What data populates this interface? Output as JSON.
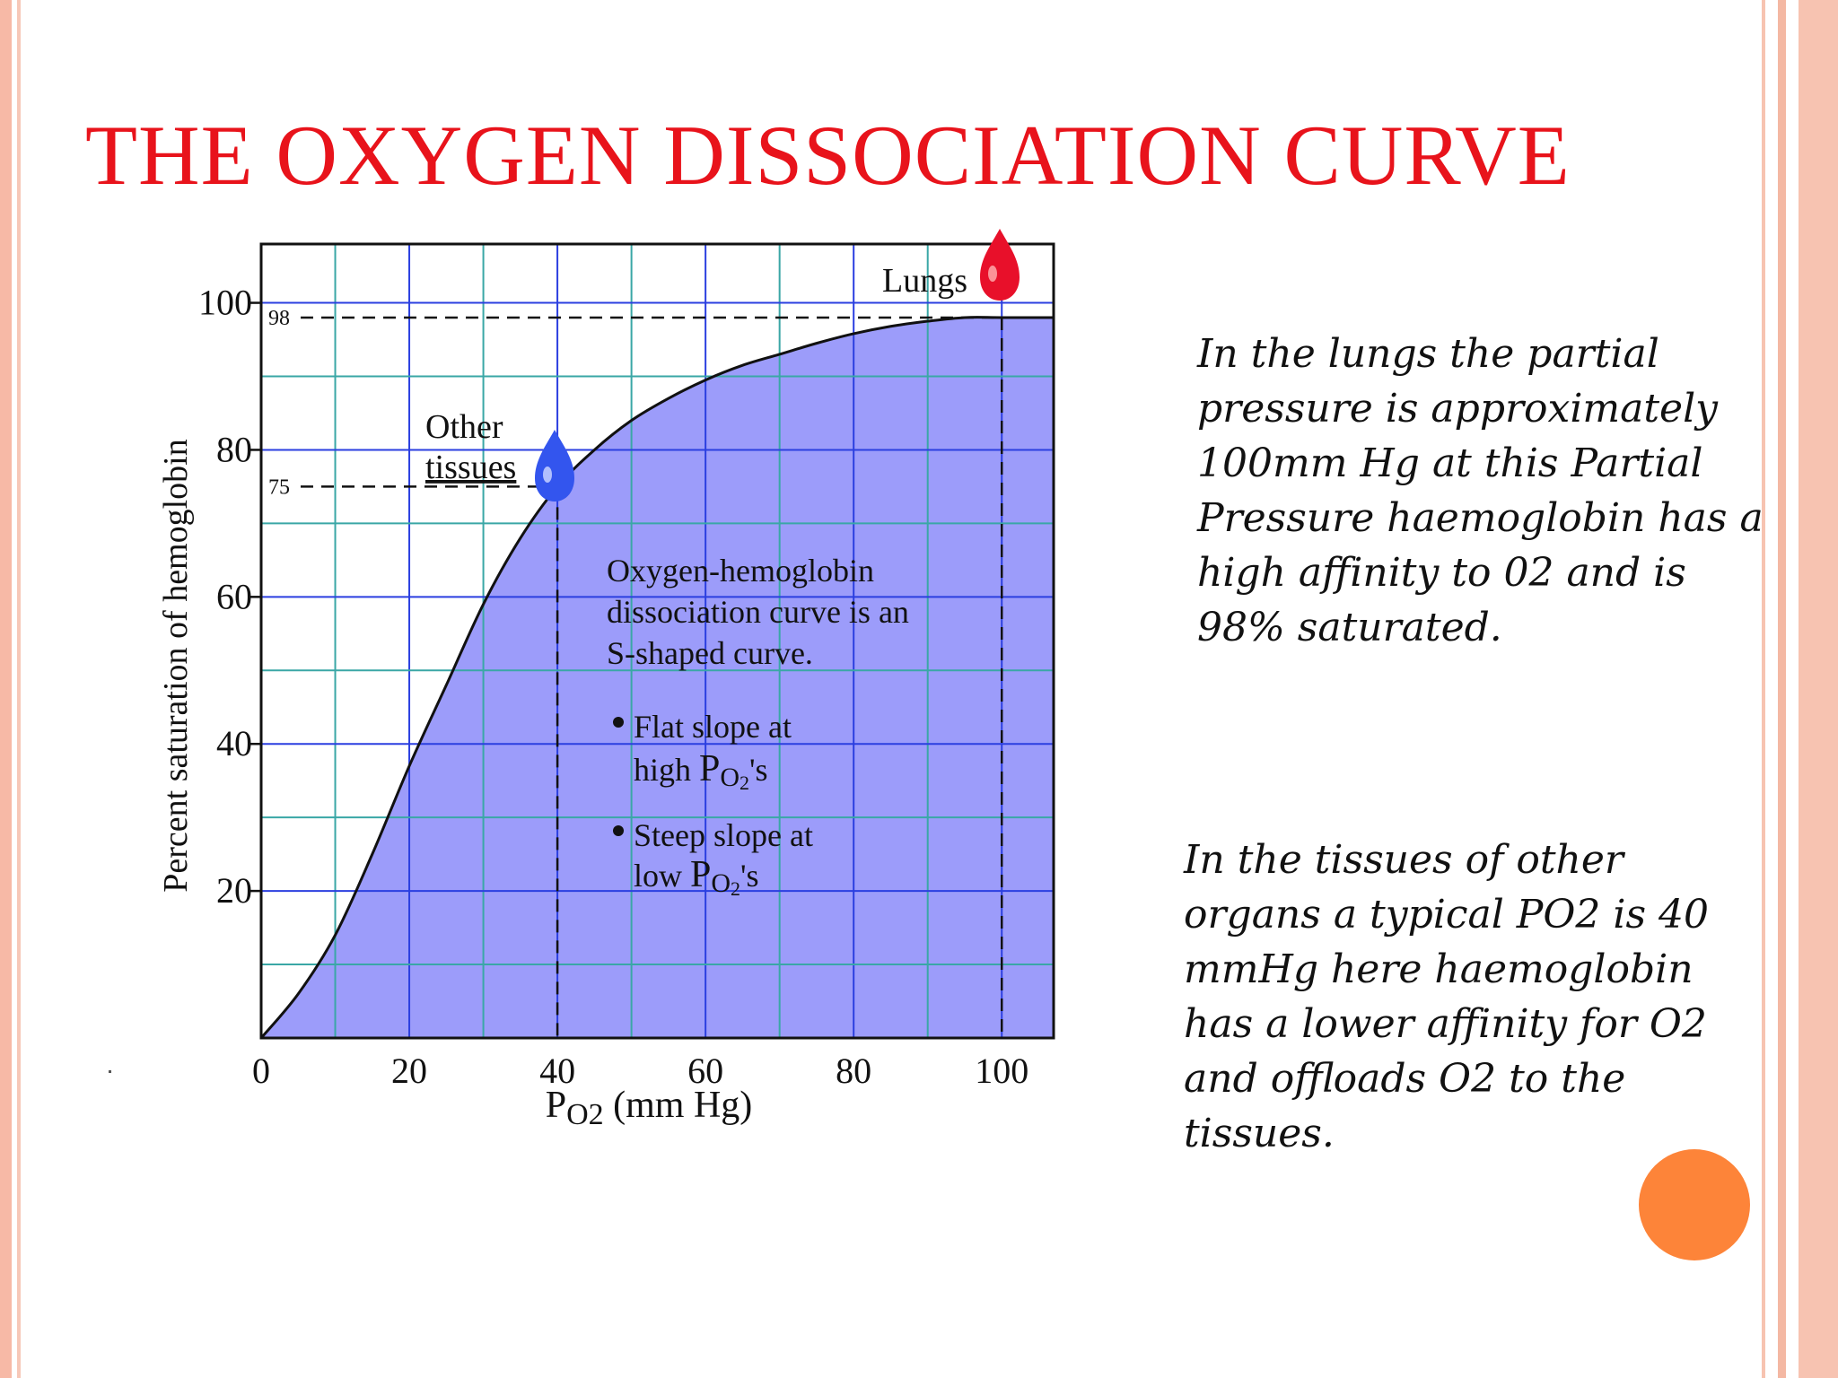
{
  "title": "THE OXYGEN DISSOCIATION CURVE",
  "colors": {
    "title": "#e8131b",
    "fill": "#9c9cfa",
    "grid_teal": "#3aa7a6",
    "grid_blue": "#2b3fe0",
    "lungs_drop": "#e8102a",
    "tissues_drop": "#3355ee",
    "accent_circle": "#fd8439",
    "border": "#f7b9a6"
  },
  "chart_data": {
    "type": "area",
    "title": "",
    "xlabel_main": "P",
    "xlabel_sub": "O2",
    "xlabel_unit": " (mm Hg)",
    "ylabel": "Percent saturation of hemoglobin",
    "xlim": [
      0,
      107
    ],
    "ylim": [
      0,
      108
    ],
    "x_ticks": [
      "0",
      "20",
      "40",
      "60",
      "80",
      "100"
    ],
    "y_ticks": [
      "20",
      "40",
      "60",
      "80",
      "100"
    ],
    "grid": true,
    "x": [
      0,
      5,
      10,
      15,
      20,
      25,
      30,
      35,
      40,
      45,
      50,
      55,
      60,
      65,
      70,
      75,
      80,
      85,
      90,
      95,
      100,
      107
    ],
    "y": [
      0,
      6,
      14,
      25,
      37,
      48,
      59,
      68,
      75,
      80,
      84,
      87,
      89.5,
      91.5,
      93,
      94.5,
      95.8,
      96.8,
      97.5,
      98,
      98,
      98
    ],
    "reference_lines": [
      {
        "x": 40,
        "y": 75,
        "y_label": "75"
      },
      {
        "x": 100,
        "y": 98,
        "y_label": "98"
      }
    ],
    "annotations": {
      "lungs": "Lungs",
      "other_tissues_line1": "Other",
      "other_tissues_line2": "tissues",
      "curve_desc": [
        "Oxygen-hemoglobin",
        "dissociation curve is an",
        "S-shaped curve."
      ],
      "bullet1_line1": "Flat slope at",
      "bullet1_line2_pre": "high ",
      "bullet1_line2_post": "'s",
      "bullet2_line1": "Steep slope at",
      "bullet2_line2_pre": "low ",
      "bullet2_line2_post": "'s",
      "po2_p": "P",
      "po2_sub": "O",
      "po2_num": "2"
    }
  },
  "text_blocks": {
    "lungs_text": "In the lungs the partial pressure is approximately 100mm Hg at this Partial Pressure haemoglobin has a high affinity to 02 and is 98% saturated.",
    "tissues_text": "In the tissues of other organs a typical PO2 is 40 mmHg here haemoglobin has a lower affinity for O2 and offloads O2 to the tissues."
  }
}
